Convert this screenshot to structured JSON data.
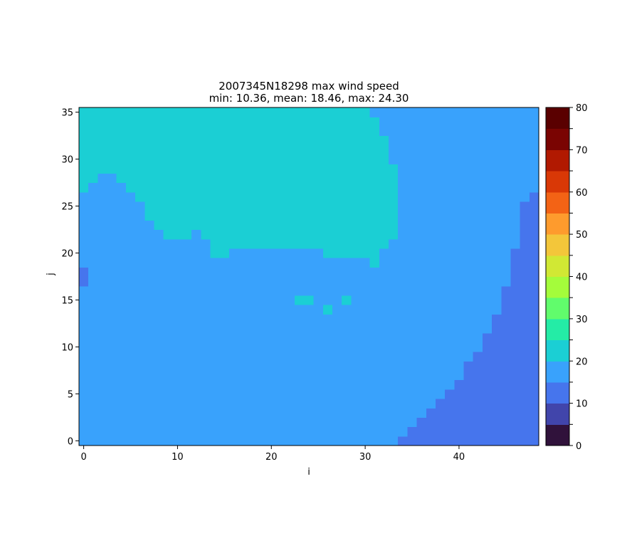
{
  "chart_data": {
    "type": "heatmap",
    "title": "2007345N18298 max wind speed",
    "subtitle": "min: 10.36, mean: 18.46, max: 24.30",
    "xlabel": "i",
    "ylabel": "j",
    "xlim": [
      -0.5,
      48.5
    ],
    "ylim": [
      -0.5,
      35.5
    ],
    "x_ticks": [
      0,
      10,
      20,
      30,
      40
    ],
    "y_ticks": [
      0,
      5,
      10,
      15,
      20,
      25,
      30,
      35
    ],
    "grid": false,
    "colorbar": {
      "range": [
        0,
        80
      ],
      "ticks": [
        0,
        10,
        20,
        30,
        40,
        50,
        60,
        70,
        80
      ],
      "bounds": [
        0,
        5,
        10,
        15,
        20,
        25,
        30,
        35,
        40,
        45,
        50,
        55,
        60,
        65,
        70,
        75,
        80
      ],
      "colors": [
        "#30123b",
        "#4145ab",
        "#4675ed",
        "#39a2fc",
        "#1bcfd4",
        "#24eca6",
        "#61fc6c",
        "#a4fc3b",
        "#d1e834",
        "#f3c63a",
        "#fe9b2d",
        "#f36315",
        "#d93806",
        "#b11901",
        "#7a0402",
        "#5a0000"
      ]
    },
    "grid_size": {
      "nx": 49,
      "ny": 36
    },
    "cell_value_legend": {
      "cyan": 22.5,
      "blue": 17.5,
      "darkblue": 12.5
    },
    "cyan_region_columns": [
      {
        "i": 0,
        "from_j": 27,
        "to_j": 35
      },
      {
        "i": 1,
        "from_j": 28,
        "to_j": 35
      },
      {
        "i": 2,
        "from_j": 29,
        "to_j": 35
      },
      {
        "i": 3,
        "from_j": 29,
        "to_j": 35
      },
      {
        "i": 4,
        "from_j": 28,
        "to_j": 35
      },
      {
        "i": 5,
        "from_j": 27,
        "to_j": 35
      },
      {
        "i": 6,
        "from_j": 26,
        "to_j": 35
      },
      {
        "i": 7,
        "from_j": 24,
        "to_j": 35
      },
      {
        "i": 8,
        "from_j": 23,
        "to_j": 35
      },
      {
        "i": 9,
        "from_j": 22,
        "to_j": 35
      },
      {
        "i": 10,
        "from_j": 22,
        "to_j": 35
      },
      {
        "i": 11,
        "from_j": 22,
        "to_j": 35
      },
      {
        "i": 12,
        "from_j": 23,
        "to_j": 35
      },
      {
        "i": 13,
        "from_j": 22,
        "to_j": 35
      },
      {
        "i": 14,
        "from_j": 20,
        "to_j": 35
      },
      {
        "i": 15,
        "from_j": 20,
        "to_j": 35
      },
      {
        "i": 16,
        "from_j": 21,
        "to_j": 35
      },
      {
        "i": 17,
        "from_j": 21,
        "to_j": 35
      },
      {
        "i": 18,
        "from_j": 21,
        "to_j": 35
      },
      {
        "i": 19,
        "from_j": 21,
        "to_j": 35
      },
      {
        "i": 20,
        "from_j": 21,
        "to_j": 35
      },
      {
        "i": 21,
        "from_j": 21,
        "to_j": 35
      },
      {
        "i": 22,
        "from_j": 21,
        "to_j": 35
      },
      {
        "i": 23,
        "from_j": 21,
        "to_j": 35
      },
      {
        "i": 24,
        "from_j": 21,
        "to_j": 35
      },
      {
        "i": 25,
        "from_j": 21,
        "to_j": 35
      },
      {
        "i": 26,
        "from_j": 20,
        "to_j": 35
      },
      {
        "i": 27,
        "from_j": 20,
        "to_j": 35
      },
      {
        "i": 28,
        "from_j": 20,
        "to_j": 35
      },
      {
        "i": 29,
        "from_j": 20,
        "to_j": 35
      },
      {
        "i": 30,
        "from_j": 20,
        "to_j": 35
      },
      {
        "i": 31,
        "from_j": 19,
        "to_j": 34
      },
      {
        "i": 32,
        "from_j": 21,
        "to_j": 32
      },
      {
        "i": 33,
        "from_j": 22,
        "to_j": 29
      }
    ],
    "cyan_isolated_cells": [
      [
        23,
        15
      ],
      [
        24,
        15
      ],
      [
        26,
        14
      ],
      [
        28,
        15
      ]
    ],
    "darkblue_region_columns": [
      {
        "i": 34,
        "from_j": 0,
        "to_j": 0
      },
      {
        "i": 35,
        "from_j": 0,
        "to_j": 1
      },
      {
        "i": 36,
        "from_j": 0,
        "to_j": 2
      },
      {
        "i": 37,
        "from_j": 0,
        "to_j": 3
      },
      {
        "i": 38,
        "from_j": 0,
        "to_j": 4
      },
      {
        "i": 39,
        "from_j": 0,
        "to_j": 5
      },
      {
        "i": 40,
        "from_j": 0,
        "to_j": 6
      },
      {
        "i": 41,
        "from_j": 0,
        "to_j": 8
      },
      {
        "i": 42,
        "from_j": 0,
        "to_j": 9
      },
      {
        "i": 43,
        "from_j": 0,
        "to_j": 11
      },
      {
        "i": 44,
        "from_j": 0,
        "to_j": 13
      },
      {
        "i": 45,
        "from_j": 0,
        "to_j": 16
      },
      {
        "i": 46,
        "from_j": 0,
        "to_j": 20
      },
      {
        "i": 47,
        "from_j": 0,
        "to_j": 25
      },
      {
        "i": 48,
        "from_j": 0,
        "to_j": 26
      }
    ],
    "darkblue_isolated_cells": [
      [
        0,
        17
      ],
      [
        0,
        18
      ]
    ]
  }
}
